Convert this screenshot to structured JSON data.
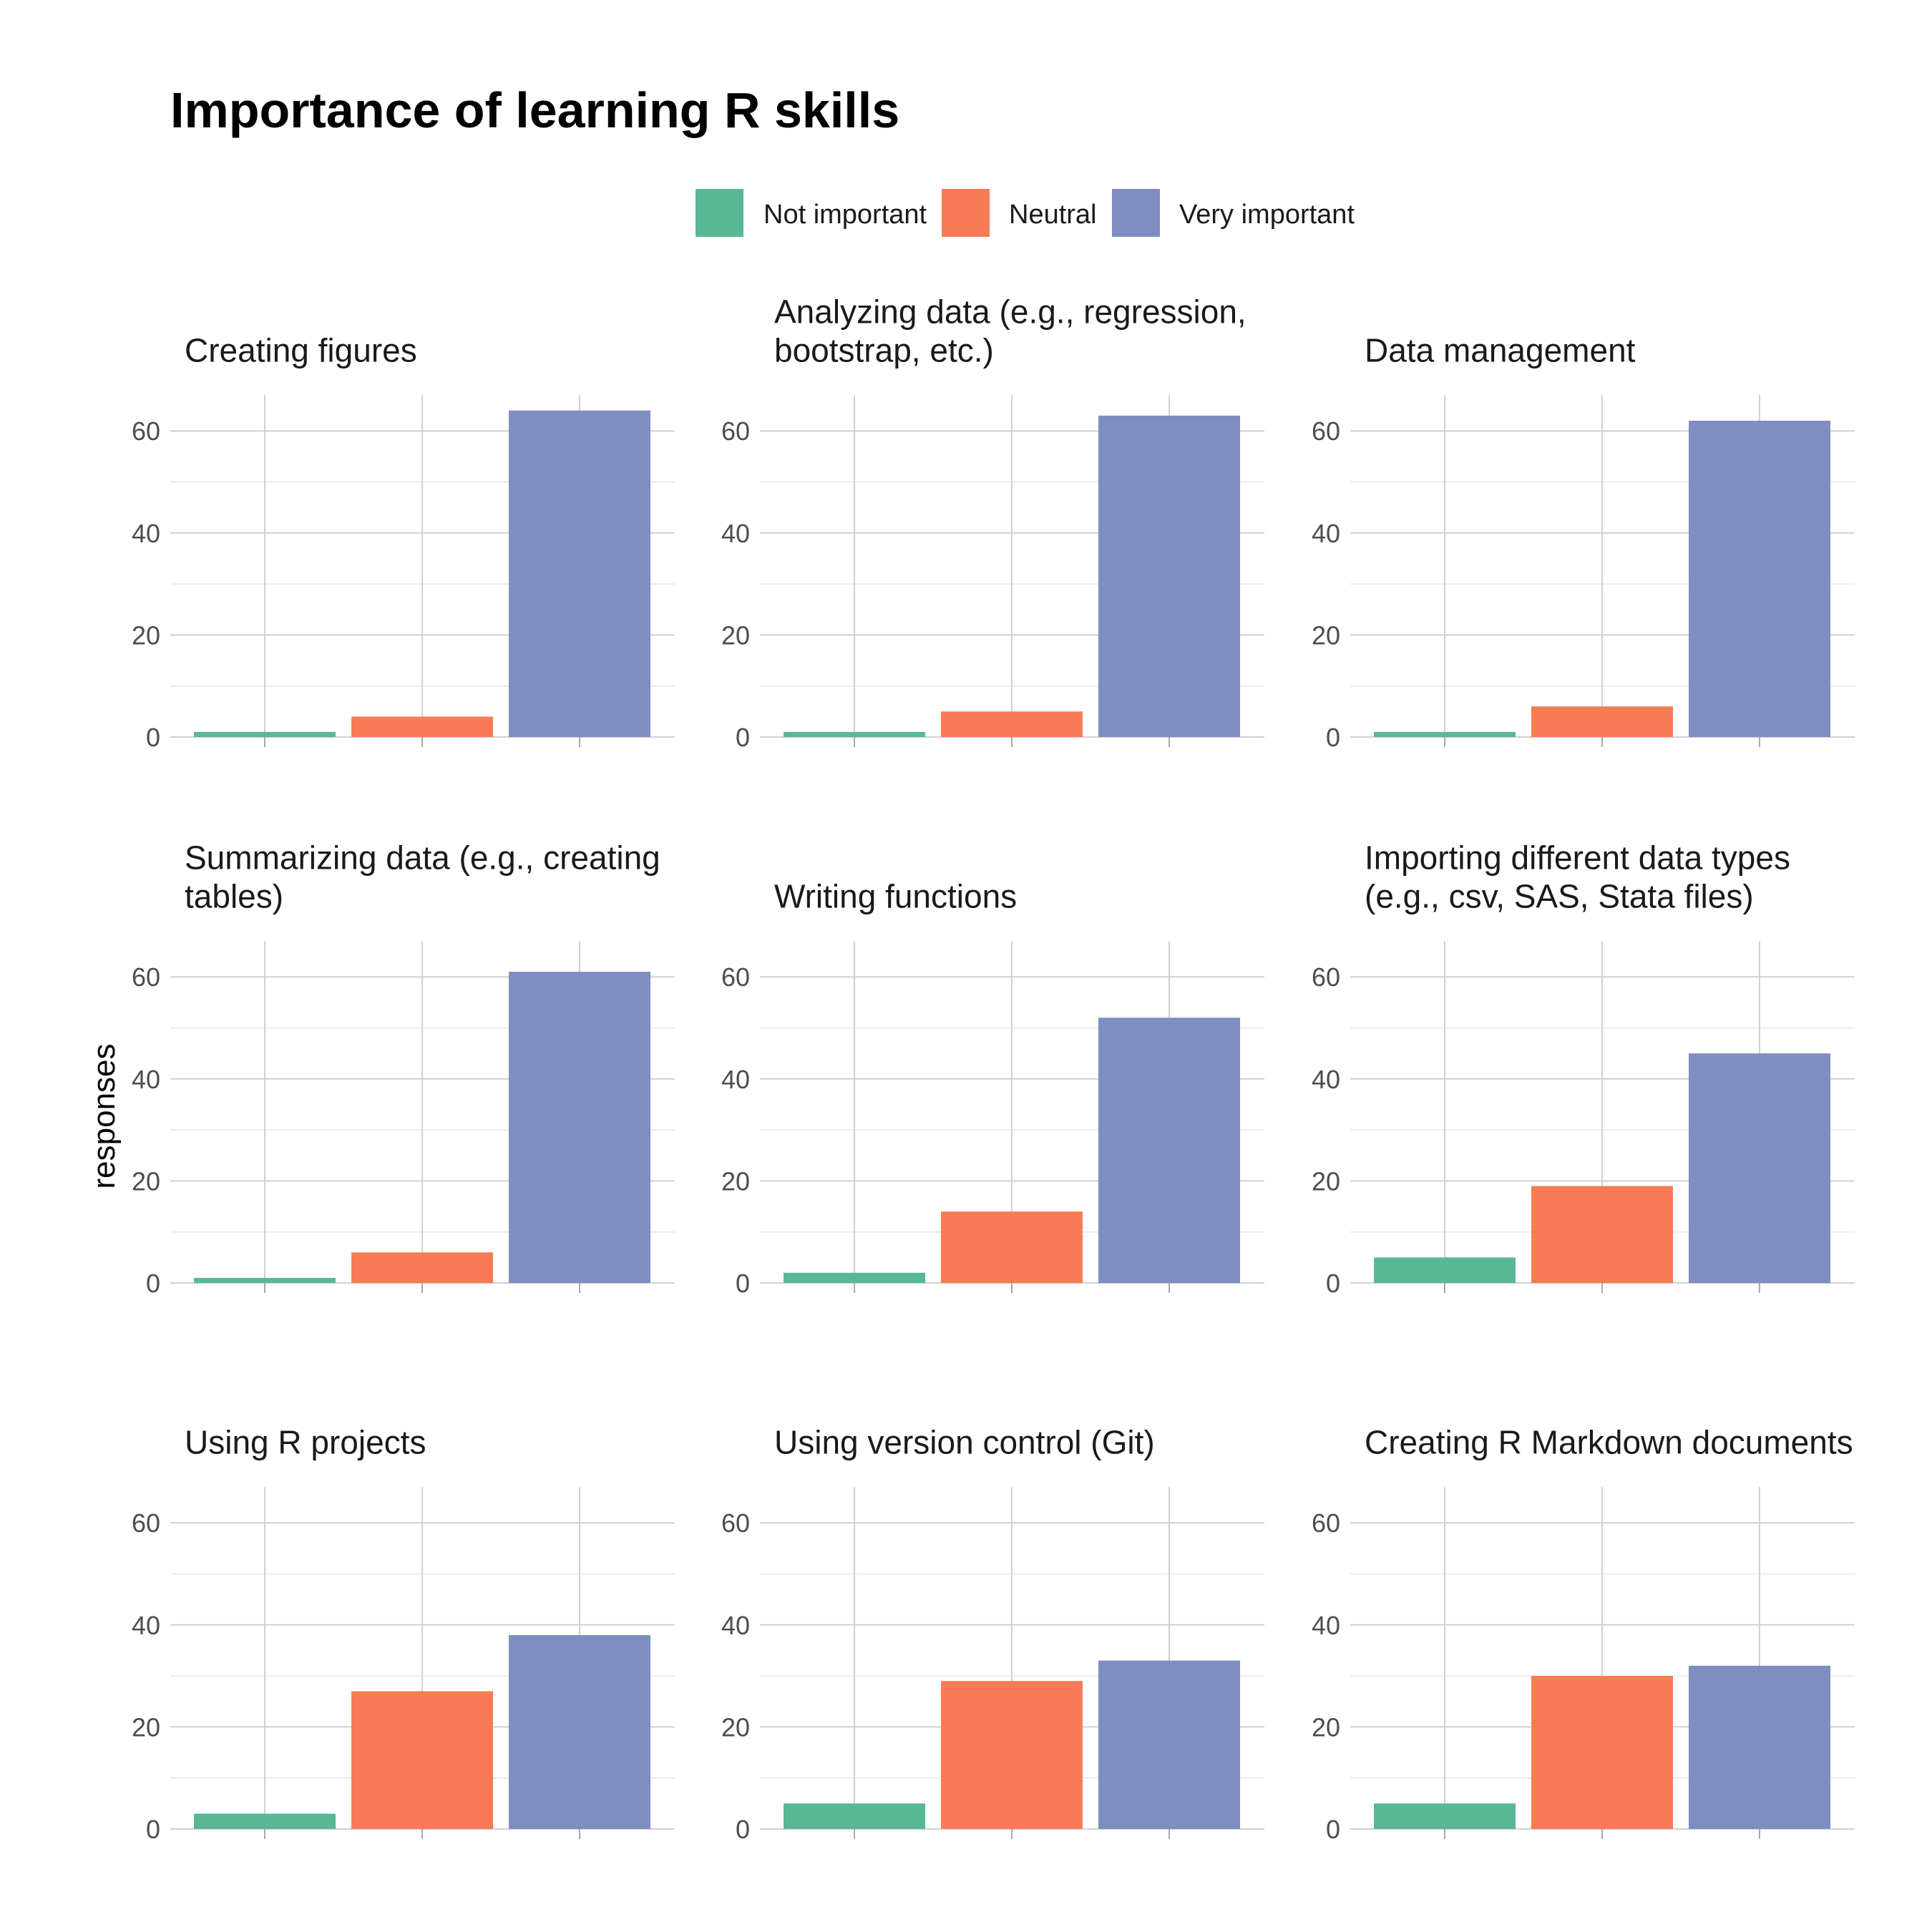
{
  "chart_data": {
    "type": "bar",
    "title": "Importance of learning R skills",
    "ylabel": "responses",
    "ylim": [
      0,
      67
    ],
    "yticks": [
      0,
      20,
      40,
      60
    ],
    "legend_position": "top",
    "categories": [
      "Not important",
      "Neutral",
      "Very important"
    ],
    "colors": [
      "#58b893",
      "#f77b54",
      "#7e8ec0"
    ],
    "facets": [
      {
        "title": "Creating figures",
        "values": [
          1,
          4,
          64
        ]
      },
      {
        "title": "Analyzing data (e.g., regression, bootstrap, etc.)",
        "values": [
          1,
          5,
          63
        ]
      },
      {
        "title": "Data management",
        "values": [
          1,
          6,
          62
        ]
      },
      {
        "title": "Summarizing data (e.g., creating tables)",
        "values": [
          1,
          6,
          61
        ]
      },
      {
        "title": "Writing functions",
        "values": [
          2,
          14,
          52
        ]
      },
      {
        "title": "Importing different data types (e.g., csv, SAS, Stata files)",
        "values": [
          5,
          19,
          45
        ]
      },
      {
        "title": "Using R projects",
        "values": [
          3,
          27,
          38
        ]
      },
      {
        "title": "Using version control (Git)",
        "values": [
          5,
          29,
          33
        ]
      },
      {
        "title": "Creating R Markdown documents",
        "values": [
          5,
          30,
          32
        ]
      }
    ]
  }
}
